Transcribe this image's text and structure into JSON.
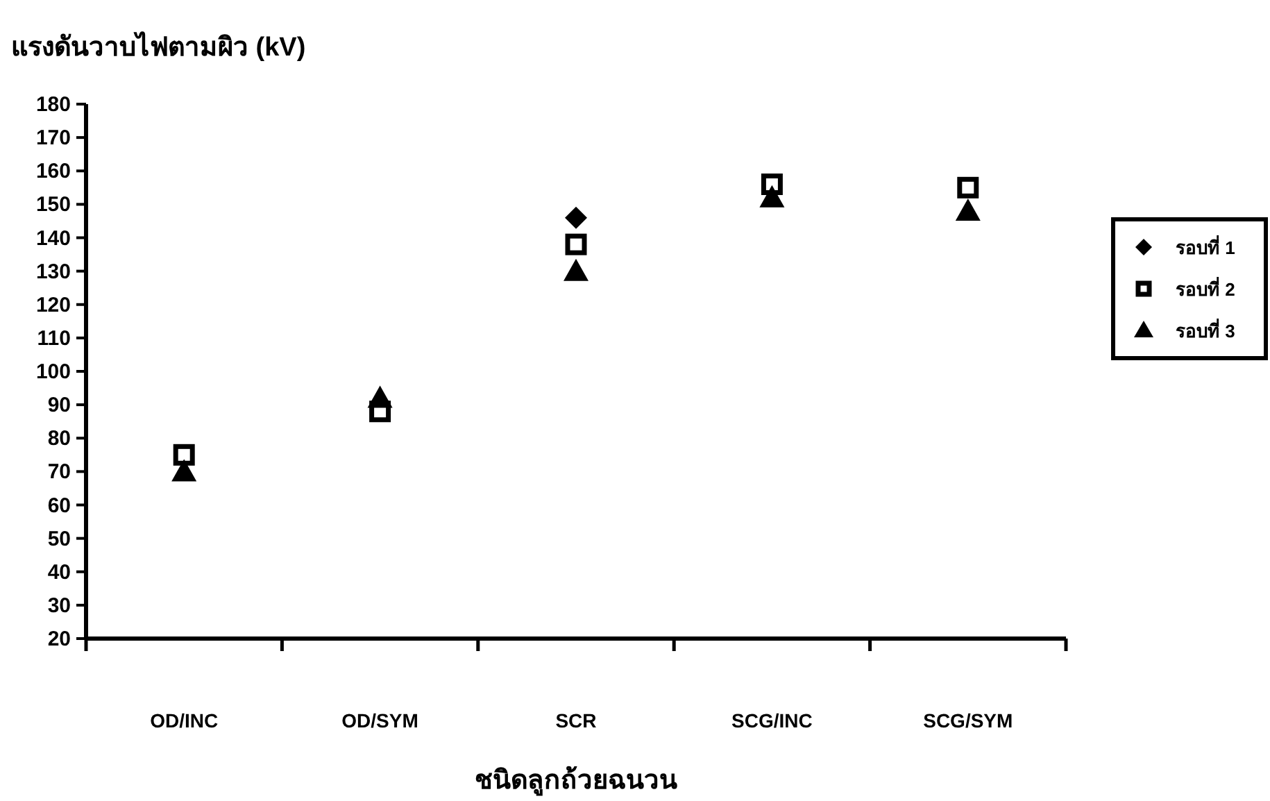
{
  "chart_data": {
    "type": "scatter",
    "ylabel": "แรงดันวาบไฟตามผิว (kV)",
    "xlabel": "ชนิดลูกถ้วยฉนวน",
    "categories": [
      "OD/INC",
      "OD/SYM",
      "SCR",
      "SCG/INC",
      "SCG/SYM"
    ],
    "series": [
      {
        "name": "รอบที่ 1",
        "color": "#000000",
        "marker": "diamond",
        "values": [
          null,
          null,
          146,
          null,
          null
        ]
      },
      {
        "name": "รอบที่ 2",
        "color": "#000000",
        "marker": "square",
        "values": [
          75,
          88,
          138,
          156,
          155
        ]
      },
      {
        "name": "รอบที่ 3",
        "color": "#000000",
        "marker": "triangle",
        "values": [
          70,
          92,
          130,
          152,
          148
        ]
      }
    ],
    "ylim": [
      20,
      180
    ],
    "yticks": [
      20,
      30,
      40,
      50,
      60,
      70,
      80,
      90,
      100,
      110,
      120,
      130,
      140,
      150,
      160,
      170,
      180
    ],
    "grid": false,
    "legend": "right"
  }
}
